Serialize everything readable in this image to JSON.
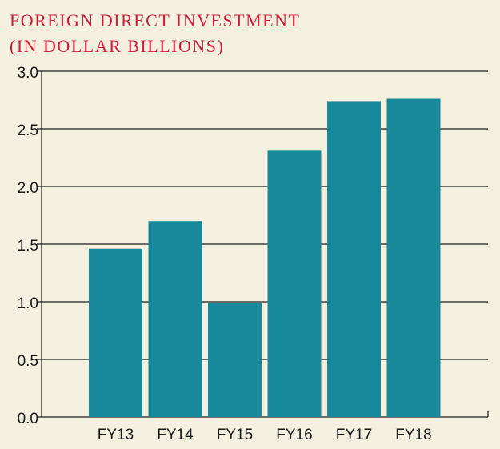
{
  "chart_data": {
    "type": "bar",
    "title_lines": [
      "FOREIGN DIRECT INVESTMENT",
      "(IN DOLLAR BILLIONS)"
    ],
    "categories": [
      "FY13",
      "FY14",
      "FY15",
      "FY16",
      "FY17",
      "FY18"
    ],
    "values": [
      1.46,
      1.7,
      0.99,
      2.31,
      2.74,
      2.76
    ],
    "yticks": [
      "0.0",
      "0.5",
      "1.0",
      "1.5",
      "2.0",
      "2.5",
      "3.0"
    ],
    "ylim": [
      0,
      3
    ],
    "grid": true,
    "colors": {
      "bar": "#17899a",
      "title": "#d21d3a",
      "background": "#f3f0df",
      "grid": "#1a1a1a"
    }
  }
}
